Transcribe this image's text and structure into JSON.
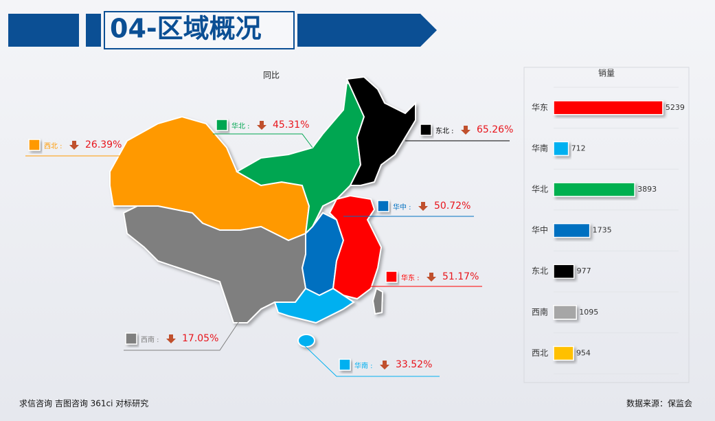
{
  "header": {
    "title": "04-区域概况"
  },
  "map": {
    "title": "同比",
    "regions": [
      {
        "label": "西北 :",
        "change": "26.39%",
        "color": "#ff9900"
      },
      {
        "label": "华北 :",
        "change": "45.31%",
        "color": "#00a651"
      },
      {
        "label": "东北 :",
        "change": "65.26%",
        "color": "#000000"
      },
      {
        "label": "华中 :",
        "change": "50.72%",
        "color": "#0070c0"
      },
      {
        "label": "华东 :",
        "change": "51.17%",
        "color": "#ff0000"
      },
      {
        "label": "西南 :",
        "change": "17.05%",
        "color": "#7f7f7f"
      },
      {
        "label": "华南 :",
        "change": "33.52%",
        "color": "#00b0f0"
      }
    ]
  },
  "chart_data": {
    "type": "hbar",
    "title": "销量",
    "categories": [
      "华东",
      "华南",
      "华北",
      "华中",
      "东北",
      "西南",
      "西北"
    ],
    "values": [
      5239,
      712,
      3893,
      1735,
      977,
      1095,
      954
    ],
    "colors": [
      "#ff0000",
      "#00b0f0",
      "#00b050",
      "#0070c0",
      "#000000",
      "#a6a6a6",
      "#ffc000"
    ],
    "xlim": [
      0,
      6000
    ],
    "grid": true
  },
  "footer": {
    "left": "求信咨询 吉图咨询 361ci 对标研究",
    "right": "数据来源：保监会"
  }
}
